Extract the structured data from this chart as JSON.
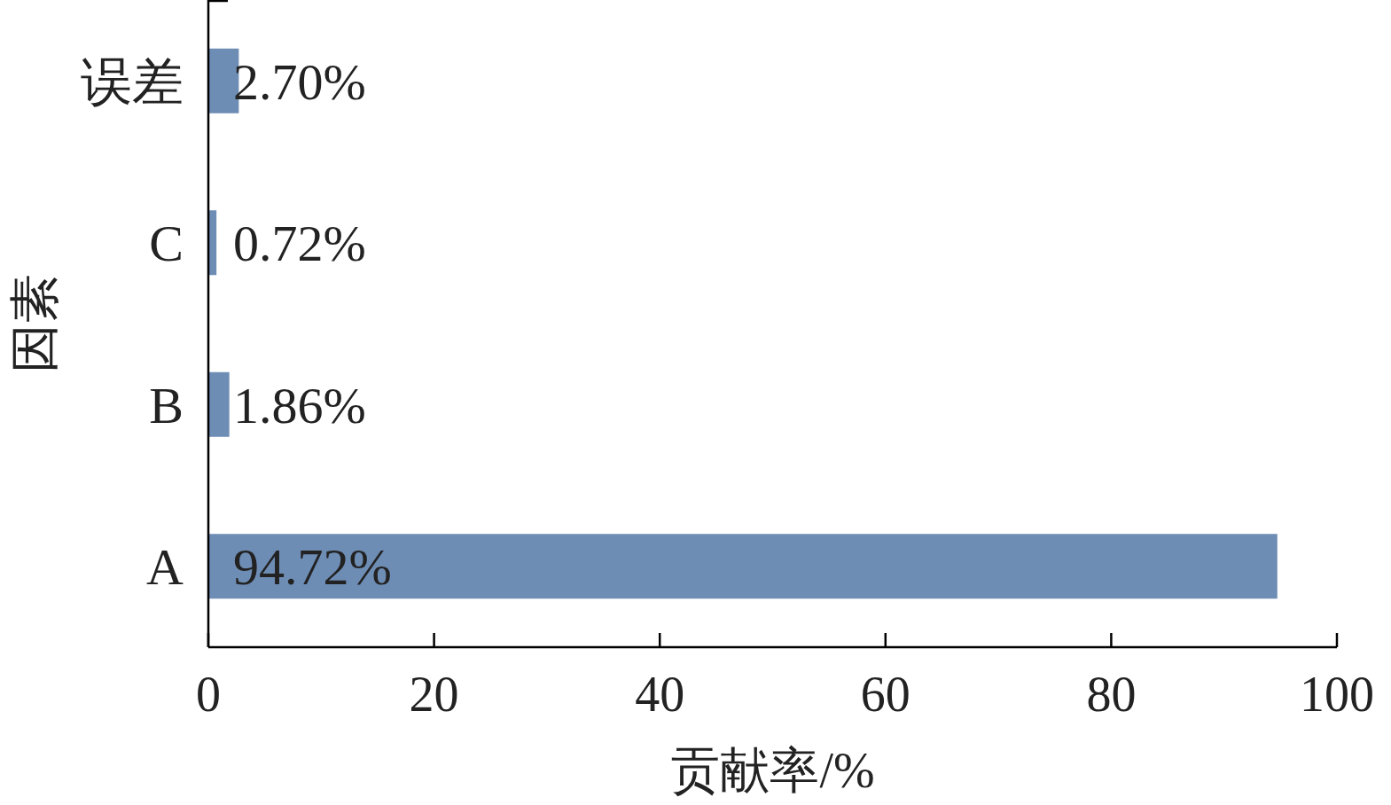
{
  "chart_data": {
    "type": "bar",
    "orientation": "horizontal",
    "xlabel": "贡献率/%",
    "ylabel": "因素",
    "categories": [
      "误差",
      "C",
      "B",
      "A"
    ],
    "values": [
      2.7,
      0.72,
      1.86,
      94.72
    ],
    "value_labels": [
      "2.70%",
      "0.72%",
      "1.86%",
      "94.72%"
    ],
    "color": "#6e8db5",
    "xlim": [
      0,
      100
    ],
    "xticks": [
      0,
      20,
      40,
      60,
      80,
      100
    ],
    "grid": false
  }
}
